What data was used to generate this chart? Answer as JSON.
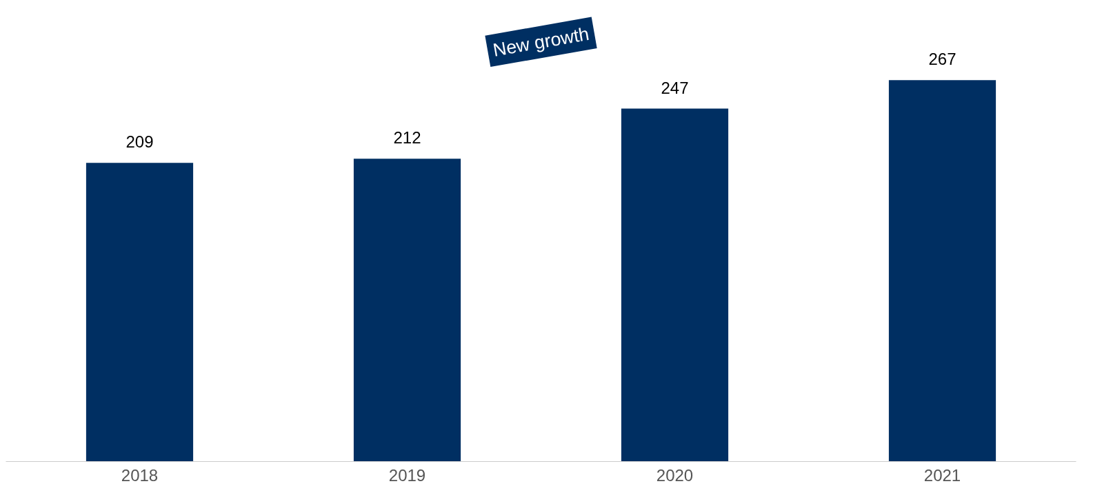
{
  "chart_data": {
    "type": "bar",
    "categories": [
      "2018",
      "2019",
      "2020",
      "2021"
    ],
    "values": [
      209,
      212,
      247,
      267
    ],
    "color": "#002f62",
    "data_labels": true,
    "grid": false,
    "annotations": [
      "New growth"
    ]
  }
}
